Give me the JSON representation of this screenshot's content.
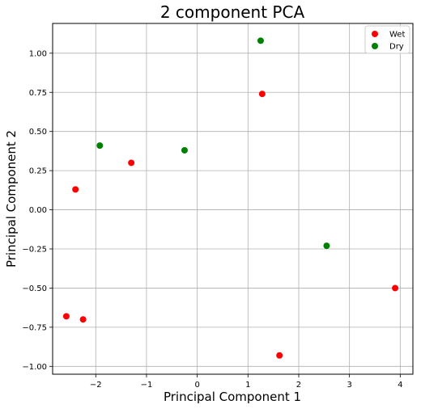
{
  "chart_data": {
    "type": "scatter",
    "title": "2 component PCA",
    "xlabel": "Principal Component 1",
    "ylabel": "Principal Component 2",
    "xlim": [
      -2.85,
      4.25
    ],
    "ylim": [
      -1.05,
      1.19
    ],
    "xticks": [
      -2,
      -1,
      0,
      1,
      2,
      3,
      4
    ],
    "yticks": [
      -1.0,
      -0.75,
      -0.5,
      -0.25,
      0.0,
      0.25,
      0.5,
      0.75,
      1.0
    ],
    "xtick_labels": [
      "−2",
      "−1",
      "0",
      "1",
      "2",
      "3",
      "4"
    ],
    "ytick_labels": [
      "−1.00",
      "−0.75",
      "−0.50",
      "−0.25",
      "0.00",
      "0.25",
      "0.50",
      "0.75",
      "1.00"
    ],
    "grid": true,
    "legend": {
      "placement": "top-right"
    },
    "series": [
      {
        "name": "Wet",
        "color": "#ff0000",
        "points": [
          {
            "x": 1.28,
            "y": 0.74
          },
          {
            "x": -1.3,
            "y": 0.3
          },
          {
            "x": -2.4,
            "y": 0.13
          },
          {
            "x": 3.9,
            "y": -0.5
          },
          {
            "x": -2.58,
            "y": -0.68
          },
          {
            "x": -2.25,
            "y": -0.7
          },
          {
            "x": 1.62,
            "y": -0.93
          }
        ]
      },
      {
        "name": "Dry",
        "color": "#008000",
        "points": [
          {
            "x": 1.25,
            "y": 1.08
          },
          {
            "x": -1.92,
            "y": 0.41
          },
          {
            "x": -0.25,
            "y": 0.38
          },
          {
            "x": 2.55,
            "y": -0.23
          }
        ]
      }
    ]
  }
}
